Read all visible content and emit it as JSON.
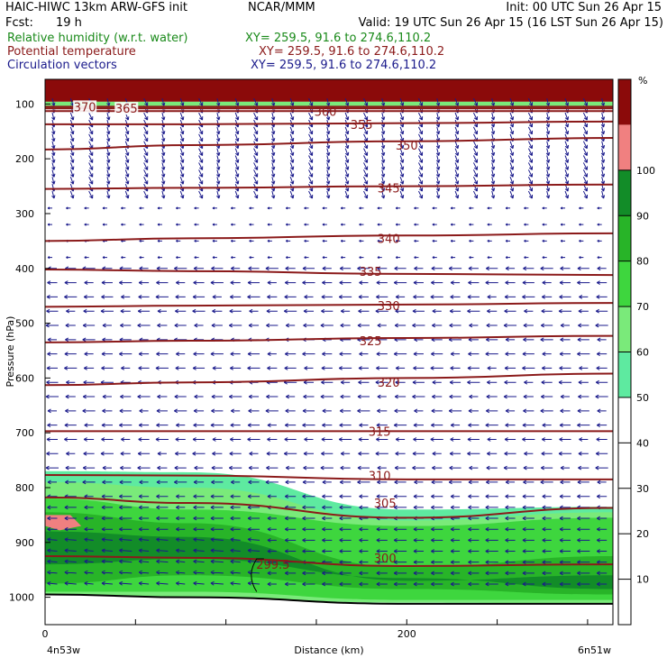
{
  "header": {
    "model": "HAIC-HIWC 13km ARW-GFS init",
    "org": "NCAR/MMM",
    "init": "Init: 00 UTC Sun 26 Apr 15",
    "fcst_label": "Fcst:",
    "fcst_value": "19 h",
    "valid": "Valid: 19 UTC Sun 26 Apr 15 (16 LST Sun 26 Apr 15)",
    "fields": [
      {
        "label": "Relative humidity (w.r.t. water)",
        "xy": "XY= 259.5, 91.6 to 274.6,110.2",
        "color": "#1a8a1a"
      },
      {
        "label": "Potential temperature",
        "xy": "XY= 259.5, 91.6 to 274.6,110.2",
        "color": "#8b1a1a"
      },
      {
        "label": "Circulation vectors",
        "xy": "XY= 259.5, 91.6 to 274.6,110.2",
        "color": "#1a1a8b"
      }
    ]
  },
  "chart_data": {
    "type": "heatmap",
    "ylabel": "Pressure (hPa)",
    "xlabel": "Distance (km)",
    "x_range": [
      0,
      314
    ],
    "x_ticks": [
      0,
      200
    ],
    "y_range": [
      1050,
      55
    ],
    "y_ticks": [
      100,
      200,
      300,
      400,
      500,
      600,
      700,
      800,
      900,
      1000
    ],
    "x_end_labels": {
      "left": "4n53w",
      "right": "6n51w"
    },
    "colorbar": {
      "unit": "%",
      "ticks": [
        10,
        20,
        30,
        40,
        50,
        60,
        70,
        80,
        90,
        100
      ],
      "bins": [
        {
          "from": 50,
          "to": 60,
          "color": "#5eeaa0"
        },
        {
          "from": 60,
          "to": 70,
          "color": "#7aea7a"
        },
        {
          "from": 70,
          "to": 80,
          "color": "#3ed63e"
        },
        {
          "from": 80,
          "to": 90,
          "color": "#28b428"
        },
        {
          "from": 90,
          "to": 100,
          "color": "#128c28"
        },
        {
          "from": 100,
          "to": 110,
          "color": "#f08080"
        },
        {
          "from": 110,
          "to": 120,
          "color": "#8b0a0a"
        }
      ]
    },
    "rh_layers": [
      {
        "color": "#8b0a0a",
        "top": [
          55,
          55,
          55,
          55
        ],
        "bottom": [
          96,
          96,
          96,
          96
        ]
      },
      {
        "color": "#7aea7a",
        "top": [
          96,
          96,
          96,
          96
        ],
        "bottom": [
          108,
          108,
          108,
          108
        ]
      },
      {
        "color": "#5eeaa0",
        "top": [
          770,
          772,
          840,
          835
        ],
        "bottom": [
          1000,
          1000,
          1010,
          1012
        ]
      },
      {
        "color": "#7aea7a",
        "top": [
          790,
          800,
          860,
          845
        ],
        "bottom": [
          1000,
          1000,
          1010,
          1012
        ]
      },
      {
        "color": "#3ed63e",
        "top": [
          820,
          840,
          870,
          855
        ],
        "bottom": [
          990,
          990,
          1005,
          1005
        ]
      },
      {
        "color": "#28b428",
        "top": [
          845,
          865,
          945,
          925
        ],
        "bottom": [
          975,
          960,
          985,
          995
        ]
      },
      {
        "color": "#128c28",
        "top": [
          880,
          890,
          970,
          960
        ],
        "bottom": [
          940,
          930,
          965,
          985
        ]
      }
    ],
    "rh_layer_x": [
      0,
      80,
      200,
      314
    ],
    "theta_contours": [
      {
        "value": 370,
        "p": [
          105,
          105,
          105,
          105
        ],
        "label_x": 22
      },
      {
        "value": 365,
        "p": [
          108,
          108,
          108,
          108
        ],
        "label_x": 45
      },
      {
        "value": 360,
        "p": [
          113,
          113,
          113,
          113
        ],
        "label_x": 155
      },
      {
        "value": 355,
        "p": [
          137,
          137,
          135,
          132
        ],
        "label_x": 175
      },
      {
        "value": 350,
        "p": [
          183,
          175,
          168,
          162
        ],
        "label_x": 200
      },
      {
        "value": 345,
        "p": [
          255,
          253,
          250,
          247
        ],
        "label_x": 190
      },
      {
        "value": 340,
        "p": [
          350,
          345,
          340,
          336
        ],
        "label_x": 190
      },
      {
        "value": 335,
        "p": [
          402,
          405,
          410,
          412
        ],
        "label_x": 180
      },
      {
        "value": 330,
        "p": [
          470,
          468,
          466,
          463
        ],
        "label_x": 190
      },
      {
        "value": 325,
        "p": [
          535,
          532,
          527,
          523
        ],
        "label_x": 180
      },
      {
        "value": 320,
        "p": [
          613,
          608,
          600,
          592
        ],
        "label_x": 190
      },
      {
        "value": 315,
        "p": [
          697,
          697,
          697,
          697
        ],
        "label_x": 185
      },
      {
        "value": 310,
        "p": [
          777,
          778,
          785,
          785
        ],
        "label_x": 185
      },
      {
        "value": 305,
        "p": [
          818,
          828,
          855,
          837
        ],
        "label_x": 188
      },
      {
        "value": 300,
        "p": [
          925,
          928,
          943,
          940
        ],
        "label_x": 188
      },
      {
        "value": 299.5,
        "p": [
          935,
          940,
          985,
          990
        ],
        "label_x": 126
      }
    ],
    "theta_x": [
      0,
      80,
      200,
      314
    ],
    "terrain_p": [
      995,
      1000,
      1012,
      1012
    ],
    "vectors": {
      "columns": 31,
      "rows_upper": {
        "p_from": 90,
        "p_to": 260,
        "dir": "down-right"
      },
      "rows_mid": {
        "p_from": 290,
        "p_to": 380,
        "dir": "left"
      },
      "rows_lower": {
        "p_from": 400,
        "p_to": 990,
        "dir": "left"
      }
    }
  }
}
